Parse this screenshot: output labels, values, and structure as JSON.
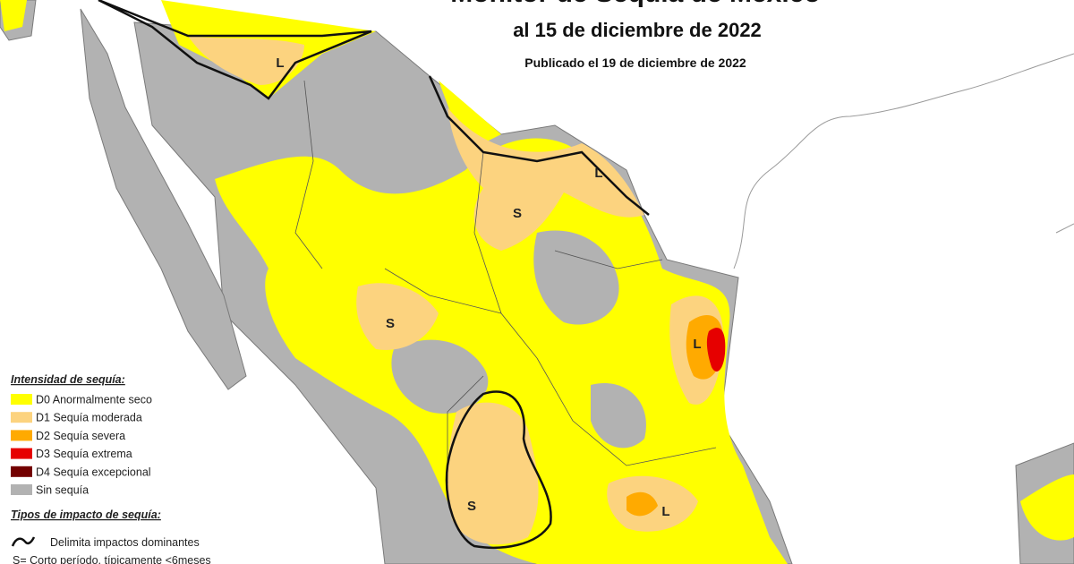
{
  "header": {
    "title": "Monitor de Sequía de México",
    "date": "al 15 de diciembre de 2022",
    "published": "Publicado el 19 de diciembre de 2022"
  },
  "legend": {
    "title": "Intensidad de sequía:",
    "items": [
      {
        "label": "D0 Anormalmente seco",
        "color": "#ffff00"
      },
      {
        "label": "D1 Sequía moderada",
        "color": "#fcd37f"
      },
      {
        "label": "D2 Sequía severa",
        "color": "#ffaa00"
      },
      {
        "label": "D3 Sequía extrema",
        "color": "#e60000"
      },
      {
        "label": "D4 Sequía excepcional",
        "color": "#730000"
      },
      {
        "label": "Sin sequía",
        "color": "#b2b2b2"
      }
    ],
    "impact_title": "Tipos de impacto de sequía:",
    "impact_items": [
      "Delimita impactos dominantes",
      "S= Corto período, típicamente <6meses"
    ]
  },
  "map": {
    "labels": [
      "L",
      "L",
      "S",
      "S",
      "L",
      "S",
      "L"
    ]
  }
}
